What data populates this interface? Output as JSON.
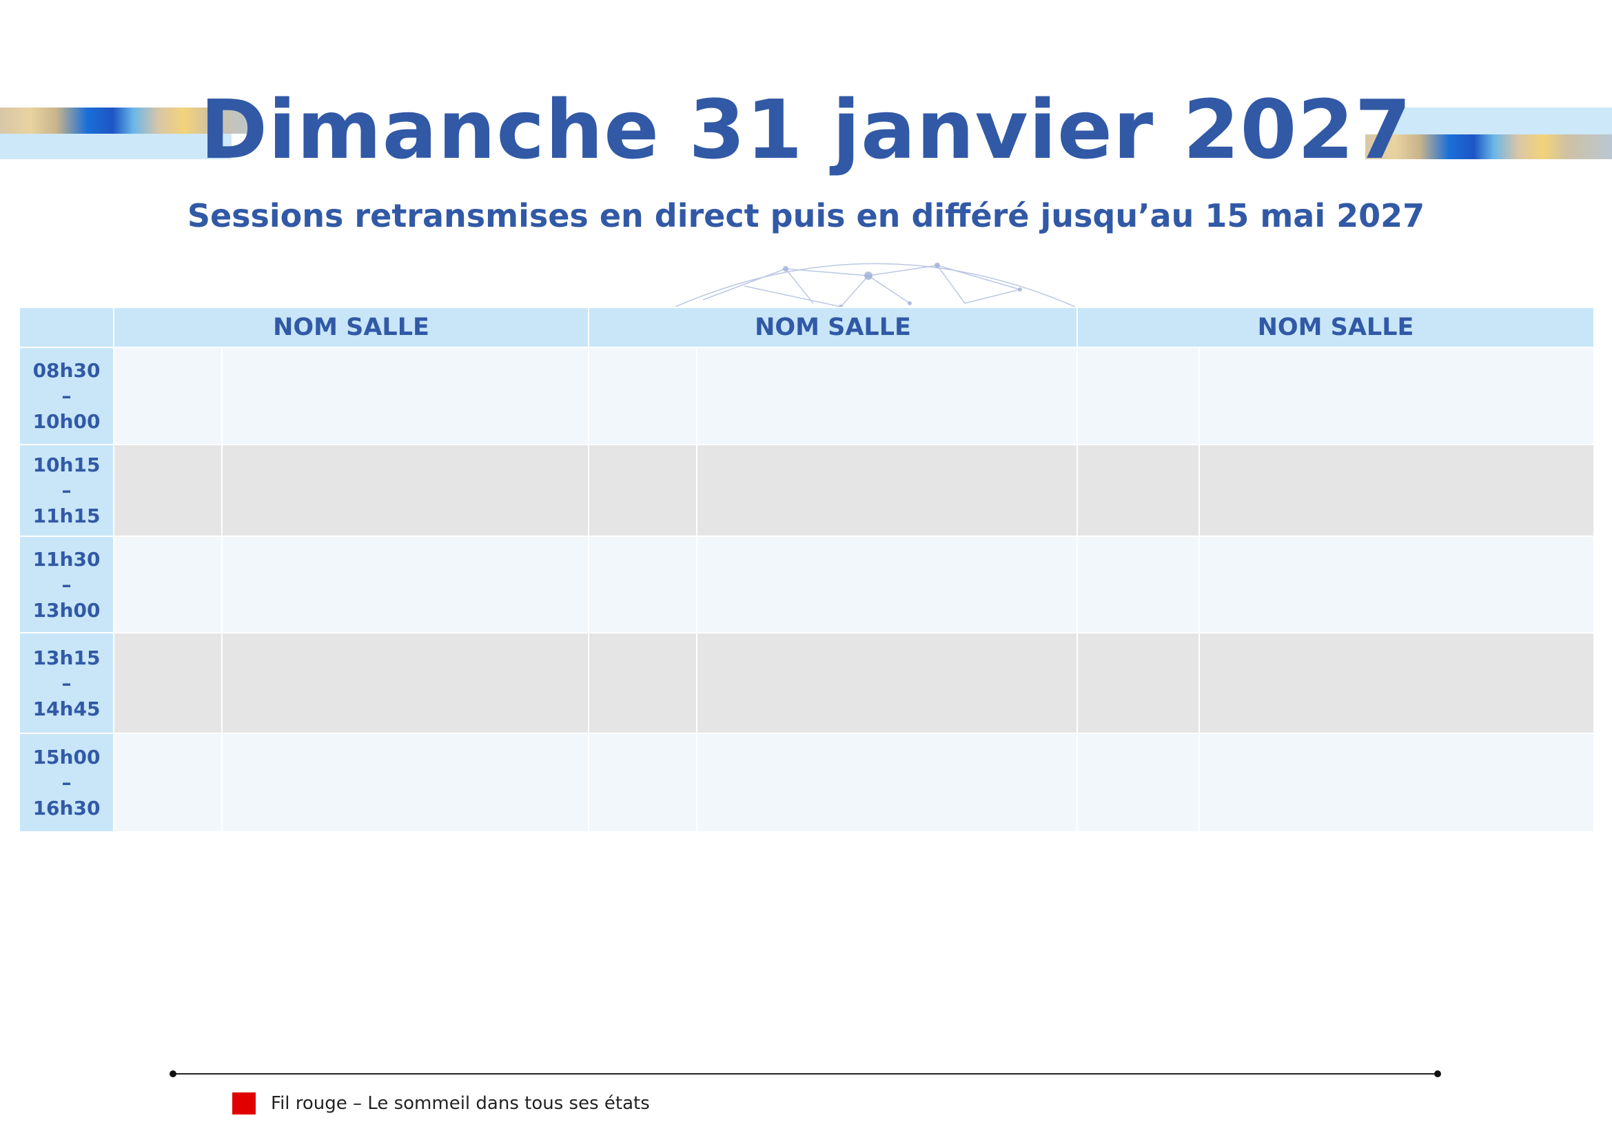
{
  "header": {
    "title": "Dimanche 31 janvier 2027",
    "subtitle": "Sessions retransmises en direct puis en différé jusqu’au 15 mai 2027"
  },
  "schedule": {
    "rooms": [
      "NOM SALLE",
      "NOM SALLE",
      "NOM SALLE"
    ],
    "slots": [
      {
        "start": "08h30",
        "sep": "–",
        "end": "10h00"
      },
      {
        "start": "10h15",
        "sep": "–",
        "end": "11h15"
      },
      {
        "start": "11h30",
        "sep": "–",
        "end": "13h00"
      },
      {
        "start": "13h15",
        "sep": "–",
        "end": "14h45"
      },
      {
        "start": "15h00",
        "sep": "–",
        "end": "16h30"
      }
    ]
  },
  "legend": {
    "label": "Fil rouge – Le sommeil dans tous ses états",
    "color": "#e00000"
  },
  "colors": {
    "accent": "#3159a6",
    "header_bg": "#c8e6f8",
    "row_light": "#f2f7fc",
    "row_grey": "#e5e5e5"
  }
}
